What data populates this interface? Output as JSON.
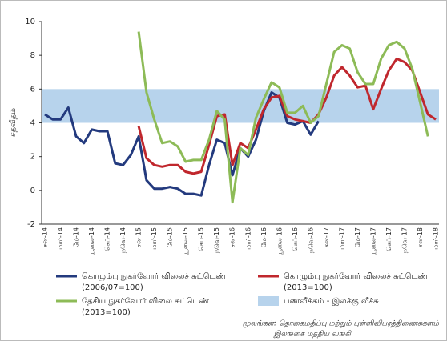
{
  "chart_data": {
    "type": "line",
    "y_label": "சதவீதம்",
    "categories": [
      "சன-14",
      null,
      "மார்-14",
      null,
      "மே-14",
      null,
      "யூலை-14",
      null,
      "செப்-14",
      null,
      "நவெ-14",
      null,
      "சன-15",
      null,
      "மார்-15",
      null,
      "மே-15",
      null,
      "யூலை-15",
      null,
      "செப்-15",
      null,
      "நவெ-15",
      null,
      "சன-16",
      null,
      "மார்-16",
      null,
      "மே-16",
      null,
      "யூலை-16",
      null,
      "செப்-16",
      null,
      "நவெ-16",
      null,
      "சன-17",
      null,
      "மார்-17",
      null,
      "மே-17",
      null,
      "யூலை-17",
      null,
      "செப்-17",
      null,
      "நவெ-17",
      null,
      "சன-18",
      null,
      "மார்-18"
    ],
    "series": [
      {
        "name": "கொழும்பு நுகர்வோர் விலைச் சுட்டெண்",
        "note": "(2006/07=100)",
        "color": "#233a7e",
        "values": [
          4.5,
          4.2,
          4.2,
          4.9,
          3.2,
          2.8,
          3.6,
          3.5,
          3.5,
          1.6,
          1.5,
          2.1,
          3.2,
          0.6,
          0.1,
          0.1,
          0.2,
          0.1,
          -0.2,
          -0.2,
          -0.3,
          1.5,
          3.0,
          2.8,
          0.9,
          2.5,
          2.0,
          3.0,
          4.7,
          5.8,
          5.5,
          4.0,
          3.9,
          4.1,
          3.3,
          4.1,
          null,
          null,
          null,
          null,
          null,
          null,
          null,
          null,
          null,
          null,
          null,
          null,
          null,
          null,
          null
        ]
      },
      {
        "name": "கொழும்பு நுகர்வோர் விலைச் சுட்டெண்",
        "note": "(2013=100)",
        "color": "#c0272d",
        "values": [
          null,
          null,
          null,
          null,
          null,
          null,
          null,
          null,
          null,
          null,
          null,
          null,
          3.8,
          1.9,
          1.5,
          1.4,
          1.5,
          1.5,
          1.1,
          1.0,
          1.1,
          2.7,
          4.4,
          4.5,
          1.5,
          2.8,
          2.5,
          3.6,
          4.8,
          5.5,
          5.6,
          4.4,
          4.2,
          4.1,
          4.0,
          4.5,
          5.5,
          6.8,
          7.3,
          6.8,
          6.1,
          6.2,
          4.8,
          6.0,
          7.1,
          7.8,
          7.6,
          7.1,
          5.8,
          4.5,
          4.2
        ]
      },
      {
        "name": "தேசிய நுகர்வோர் விலை சுட்டெண்",
        "note": "(2013=100)",
        "color": "#8dbb57",
        "values": [
          null,
          null,
          null,
          null,
          null,
          null,
          null,
          null,
          null,
          null,
          null,
          null,
          9.4,
          5.8,
          4.2,
          2.8,
          2.9,
          2.6,
          1.7,
          1.8,
          1.8,
          3.0,
          4.7,
          4.2,
          -0.7,
          2.5,
          2.1,
          4.3,
          5.4,
          6.4,
          6.1,
          4.6,
          4.6,
          5.0,
          4.0,
          4.4,
          6.3,
          8.2,
          8.6,
          8.4,
          7.0,
          6.3,
          6.3,
          7.8,
          8.6,
          8.8,
          8.4,
          7.2,
          5.2,
          3.2,
          null
        ]
      }
    ],
    "target_band": {
      "label": "பணவீக்கம் - இலக்கு வீச்சு",
      "range": [
        4,
        6
      ],
      "color": "#b7d3ec"
    },
    "ylim": [
      -2,
      10
    ],
    "yticks": [
      -2,
      0,
      2,
      4,
      6,
      8,
      10
    ],
    "source": [
      "மூலங்கள்: தொகைமதிப்பு மற்றும் புள்ளிவிபரத்திணைக்களம்",
      "இலங்கை மத்திய வங்கி"
    ]
  }
}
